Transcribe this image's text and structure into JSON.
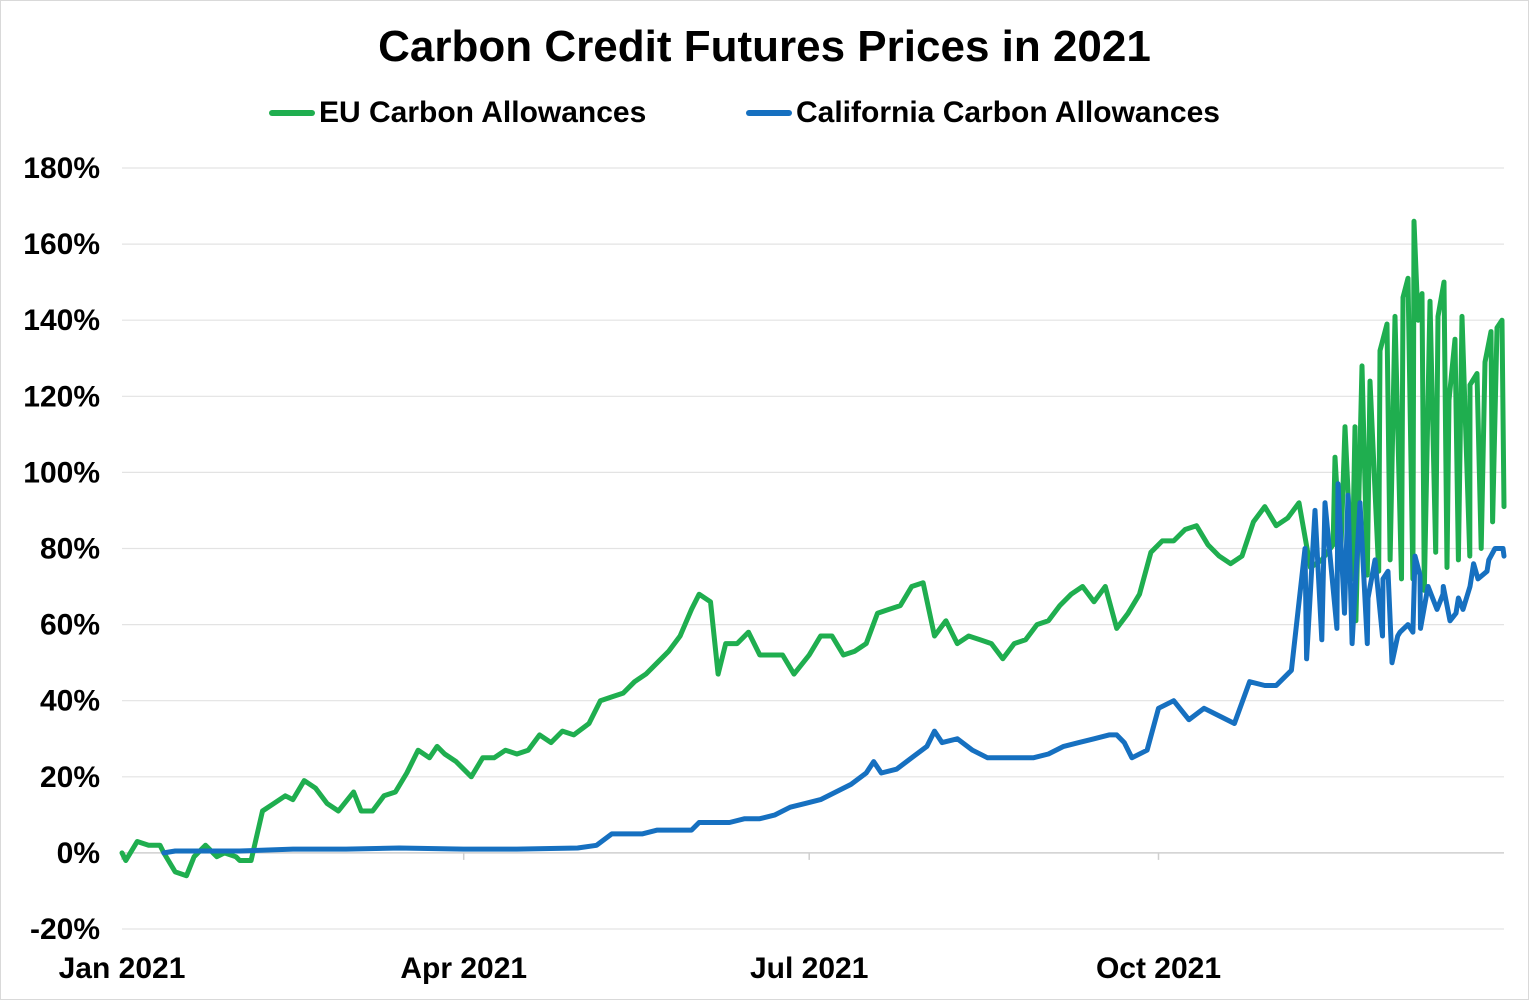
{
  "chart_data": {
    "type": "line",
    "title": "Carbon Credit Futures Prices in 2021",
    "xlabel": "",
    "ylabel": "",
    "x_tick_labels": [
      "Jan 2021",
      "Apr 2021",
      "Jul 2021",
      "Oct 2021"
    ],
    "x_tick_dates": [
      "2021-01-01",
      "2021-04-01",
      "2021-07-01",
      "2021-10-01"
    ],
    "xlim": [
      "2021-01-01",
      "2021-12-31"
    ],
    "y_tick_labels": [
      "-20%",
      "0%",
      "20%",
      "40%",
      "60%",
      "80%",
      "100%",
      "120%",
      "140%",
      "160%",
      "180%"
    ],
    "y_tick_values": [
      -20,
      0,
      20,
      40,
      60,
      80,
      100,
      120,
      140,
      160,
      180
    ],
    "ylim": [
      -20,
      180
    ],
    "grid": true,
    "legend_position": "top-center",
    "series": [
      {
        "name": "EU Carbon Allowances",
        "color": "#1fae4f",
        "points": [
          [
            "2021-01-01",
            0
          ],
          [
            "2021-01-02",
            -2
          ],
          [
            "2021-01-05",
            3
          ],
          [
            "2021-01-08",
            2
          ],
          [
            "2021-01-11",
            2
          ],
          [
            "2021-01-12",
            0
          ],
          [
            "2021-01-15",
            -5
          ],
          [
            "2021-01-18",
            -6
          ],
          [
            "2021-01-20",
            -1
          ],
          [
            "2021-01-23",
            2
          ],
          [
            "2021-01-26",
            -1
          ],
          [
            "2021-01-28",
            0
          ],
          [
            "2021-01-31",
            -1
          ],
          [
            "2021-02-01",
            -2
          ],
          [
            "2021-02-04",
            -2
          ],
          [
            "2021-02-07",
            11
          ],
          [
            "2021-02-10",
            13
          ],
          [
            "2021-02-13",
            15
          ],
          [
            "2021-02-15",
            14
          ],
          [
            "2021-02-18",
            19
          ],
          [
            "2021-02-21",
            17
          ],
          [
            "2021-02-24",
            13
          ],
          [
            "2021-02-27",
            11
          ],
          [
            "2021-03-03",
            16
          ],
          [
            "2021-03-05",
            11
          ],
          [
            "2021-03-08",
            11
          ],
          [
            "2021-03-11",
            15
          ],
          [
            "2021-03-14",
            16
          ],
          [
            "2021-03-17",
            21
          ],
          [
            "2021-03-20",
            27
          ],
          [
            "2021-03-23",
            25
          ],
          [
            "2021-03-25",
            28
          ],
          [
            "2021-03-27",
            26
          ],
          [
            "2021-03-30",
            24
          ],
          [
            "2021-04-01",
            22
          ],
          [
            "2021-04-03",
            20
          ],
          [
            "2021-04-06",
            25
          ],
          [
            "2021-04-09",
            25
          ],
          [
            "2021-04-12",
            27
          ],
          [
            "2021-04-15",
            26
          ],
          [
            "2021-04-18",
            27
          ],
          [
            "2021-04-21",
            31
          ],
          [
            "2021-04-24",
            29
          ],
          [
            "2021-04-27",
            32
          ],
          [
            "2021-04-30",
            31
          ],
          [
            "2021-05-04",
            34
          ],
          [
            "2021-05-07",
            40
          ],
          [
            "2021-05-10",
            41
          ],
          [
            "2021-05-13",
            42
          ],
          [
            "2021-05-16",
            45
          ],
          [
            "2021-05-19",
            47
          ],
          [
            "2021-05-22",
            50
          ],
          [
            "2021-05-25",
            53
          ],
          [
            "2021-05-28",
            57
          ],
          [
            "2021-05-31",
            64
          ],
          [
            "2021-06-02",
            68
          ],
          [
            "2021-06-05",
            66
          ],
          [
            "2021-06-07",
            47
          ],
          [
            "2021-06-09",
            55
          ],
          [
            "2021-06-12",
            55
          ],
          [
            "2021-06-15",
            58
          ],
          [
            "2021-06-18",
            52
          ],
          [
            "2021-06-21",
            52
          ],
          [
            "2021-06-24",
            52
          ],
          [
            "2021-06-27",
            47
          ],
          [
            "2021-07-01",
            52
          ],
          [
            "2021-07-04",
            57
          ],
          [
            "2021-07-07",
            57
          ],
          [
            "2021-07-10",
            52
          ],
          [
            "2021-07-13",
            53
          ],
          [
            "2021-07-16",
            55
          ],
          [
            "2021-07-19",
            63
          ],
          [
            "2021-07-22",
            64
          ],
          [
            "2021-07-25",
            65
          ],
          [
            "2021-07-28",
            70
          ],
          [
            "2021-07-31",
            71
          ],
          [
            "2021-08-03",
            57
          ],
          [
            "2021-08-06",
            61
          ],
          [
            "2021-08-09",
            55
          ],
          [
            "2021-08-12",
            57
          ],
          [
            "2021-08-15",
            56
          ],
          [
            "2021-08-18",
            55
          ],
          [
            "2021-08-21",
            51
          ],
          [
            "2021-08-24",
            55
          ],
          [
            "2021-08-27",
            56
          ],
          [
            "2021-08-30",
            60
          ],
          [
            "2021-09-02",
            61
          ],
          [
            "2021-09-05",
            65
          ],
          [
            "2021-09-08",
            68
          ],
          [
            "2021-09-11",
            70
          ],
          [
            "2021-09-14",
            66
          ],
          [
            "2021-09-17",
            70
          ],
          [
            "2021-09-20",
            59
          ],
          [
            "2021-09-23",
            63
          ],
          [
            "2021-09-26",
            68
          ],
          [
            "2021-09-29",
            79
          ],
          [
            "2021-10-02",
            82
          ],
          [
            "2021-10-05",
            82
          ],
          [
            "2021-10-08",
            85
          ],
          [
            "2021-10-11",
            86
          ],
          [
            "2021-10-14",
            81
          ],
          [
            "2021-10-17",
            78
          ],
          [
            "2021-10-20",
            76
          ],
          [
            "2021-10-23",
            78
          ],
          [
            "2021-10-26",
            87
          ],
          [
            "2021-10-29",
            91
          ],
          [
            "2021-11-01",
            86
          ],
          [
            "2021-11-04",
            88
          ],
          [
            "2021-11-07",
            92
          ],
          [
            "2021-11-10",
            75
          ],
          [
            "2021-11-13",
            77
          ],
          [
            "2021-11-16",
            81
          ],
          [
            "2021-11-18",
            78
          ],
          [
            "2021-11-21",
            72
          ],
          [
            "2021-11-22",
            61
          ],
          [
            "2021-11-25",
            73
          ],
          [
            "2021-11-28",
            74
          ],
          [
            "2021-12-01",
            77
          ],
          [
            "2021-12-04",
            72
          ],
          [
            "2021-12-07",
            72
          ],
          [
            "2021-12-10",
            69
          ],
          [
            "2021-12-13",
            79
          ],
          [
            "2021-12-16",
            75
          ],
          [
            "2021-12-19",
            77
          ],
          [
            "2021-12-22",
            78
          ],
          [
            "2021-12-25",
            80
          ],
          [
            "2021-12-28",
            87
          ],
          [
            "2021-12-31",
            91
          ]
        ],
        "tail_points": [
          [
            1335,
            475
          ],
          [
            1345,
            445
          ],
          [
            1355,
            445
          ],
          [
            1362,
            383
          ],
          [
            1370,
            398
          ],
          [
            1380,
            367
          ],
          [
            1387,
            340
          ],
          [
            1395,
            330
          ],
          [
            1403,
            313
          ],
          [
            1408,
            292
          ],
          [
            1414,
            222
          ],
          [
            1418,
            323
          ],
          [
            1422,
            293
          ],
          [
            1430,
            300
          ],
          [
            1438,
            318
          ],
          [
            1444,
            282
          ],
          [
            1449,
            400
          ],
          [
            1455,
            340
          ],
          [
            1462,
            315
          ],
          [
            1470,
            383
          ],
          [
            1477,
            372
          ],
          [
            1485,
            362
          ],
          [
            1491,
            332
          ],
          [
            1497,
            328
          ],
          [
            1502,
            318
          ]
        ],
        "tail_values": [
          [
            104
          ],
          [
            112
          ],
          [
            112
          ],
          [
            128
          ],
          [
            124
          ],
          [
            132
          ],
          [
            139
          ],
          [
            141
          ],
          [
            146
          ],
          [
            151
          ],
          [
            166
          ],
          [
            140
          ],
          [
            147
          ],
          [
            145
          ],
          [
            141
          ],
          [
            150
          ],
          [
            119
          ],
          [
            135
          ],
          [
            141
          ],
          [
            123
          ],
          [
            126
          ],
          [
            129
          ],
          [
            137
          ],
          [
            138
          ],
          [
            140
          ]
        ]
      },
      {
        "name": "California Carbon Allowances",
        "color": "#1670c0",
        "points": [
          [
            "2021-01-12",
            0
          ],
          [
            "2021-01-15",
            0.5
          ],
          [
            "2021-02-01",
            0.5
          ],
          [
            "2021-02-15",
            1
          ],
          [
            "2021-03-01",
            1
          ],
          [
            "2021-03-15",
            1.3
          ],
          [
            "2021-04-01",
            1
          ],
          [
            "2021-04-15",
            1
          ],
          [
            "2021-05-01",
            1.3
          ],
          [
            "2021-05-06",
            2
          ],
          [
            "2021-05-10",
            5
          ],
          [
            "2021-05-14",
            5
          ],
          [
            "2021-05-18",
            5
          ],
          [
            "2021-05-22",
            6
          ],
          [
            "2021-05-26",
            6
          ],
          [
            "2021-05-31",
            6
          ],
          [
            "2021-06-02",
            8
          ],
          [
            "2021-06-06",
            8
          ],
          [
            "2021-06-10",
            8
          ],
          [
            "2021-06-14",
            9
          ],
          [
            "2021-06-18",
            9
          ],
          [
            "2021-06-22",
            10
          ],
          [
            "2021-06-26",
            12
          ],
          [
            "2021-06-30",
            13
          ],
          [
            "2021-07-04",
            14
          ],
          [
            "2021-07-08",
            16
          ],
          [
            "2021-07-12",
            18
          ],
          [
            "2021-07-16",
            21
          ],
          [
            "2021-07-18",
            24
          ],
          [
            "2021-07-20",
            21
          ],
          [
            "2021-07-24",
            22
          ],
          [
            "2021-07-28",
            25
          ],
          [
            "2021-08-01",
            28
          ],
          [
            "2021-08-03",
            32
          ],
          [
            "2021-08-05",
            29
          ],
          [
            "2021-08-09",
            30
          ],
          [
            "2021-08-13",
            27
          ],
          [
            "2021-08-17",
            25
          ],
          [
            "2021-08-21",
            25
          ],
          [
            "2021-08-25",
            25
          ],
          [
            "2021-08-29",
            25
          ],
          [
            "2021-09-02",
            26
          ],
          [
            "2021-09-06",
            28
          ],
          [
            "2021-09-10",
            29
          ],
          [
            "2021-09-14",
            30
          ],
          [
            "2021-09-18",
            31
          ],
          [
            "2021-09-20",
            31
          ],
          [
            "2021-09-22",
            29
          ],
          [
            "2021-09-24",
            25
          ],
          [
            "2021-09-28",
            27
          ],
          [
            "2021-10-01",
            38
          ],
          [
            "2021-10-05",
            40
          ],
          [
            "2021-10-09",
            35
          ],
          [
            "2021-10-13",
            38
          ],
          [
            "2021-10-17",
            36
          ],
          [
            "2021-10-21",
            34
          ],
          [
            "2021-10-25",
            45
          ],
          [
            "2021-10-29",
            44
          ],
          [
            "2021-11-01",
            44
          ],
          [
            "2021-11-05",
            48
          ],
          [
            "2021-11-09",
            51
          ],
          [
            "2021-11-13",
            56
          ],
          [
            "2021-11-17",
            59
          ],
          [
            "2021-11-19",
            63
          ],
          [
            "2021-11-21",
            55
          ],
          [
            "2021-11-25",
            55
          ],
          [
            "2021-11-29",
            57
          ],
          [
            "2021-12-03",
            57
          ],
          [
            "2021-12-07",
            58
          ],
          [
            "2021-12-09",
            59
          ],
          [
            "2021-12-11",
            70
          ],
          [
            "2021-12-15",
            70
          ],
          [
            "2021-12-19",
            67
          ],
          [
            "2021-12-23",
            76
          ],
          [
            "2021-12-27",
            77
          ],
          [
            "2021-12-31",
            78
          ]
        ],
        "tail_points": [
          [
            1305,
            550
          ],
          [
            1315,
            510
          ],
          [
            1325,
            500
          ],
          [
            1338,
            483
          ],
          [
            1348,
            492
          ],
          [
            1360,
            500
          ],
          [
            1368,
            598
          ],
          [
            1375,
            562
          ],
          [
            1383,
            580
          ],
          [
            1388,
            570
          ],
          [
            1392,
            660
          ],
          [
            1400,
            633
          ],
          [
            1408,
            625
          ],
          [
            1415,
            558
          ],
          [
            1420,
            577
          ],
          [
            1428,
            585
          ],
          [
            1437,
            610
          ],
          [
            1443,
            593
          ],
          [
            1450,
            618
          ],
          [
            1456,
            613
          ],
          [
            1463,
            610
          ],
          [
            1470,
            585
          ],
          [
            1478,
            578
          ],
          [
            1487,
            572
          ],
          [
            1495,
            548
          ],
          [
            1503,
            548
          ]
        ],
        "tail_values": [
          [
            80
          ],
          [
            90
          ],
          [
            92
          ],
          [
            97
          ],
          [
            94
          ],
          [
            92
          ],
          [
            67
          ],
          [
            77
          ],
          [
            72
          ],
          [
            74
          ],
          [
            50
          ],
          [
            58
          ],
          [
            60
          ],
          [
            78
          ],
          [
            73
          ],
          [
            70
          ],
          [
            64
          ],
          [
            68
          ],
          [
            61
          ],
          [
            63
          ],
          [
            64
          ],
          [
            70
          ],
          [
            72
          ],
          [
            74
          ],
          [
            80
          ],
          [
            80
          ]
        ]
      }
    ]
  }
}
